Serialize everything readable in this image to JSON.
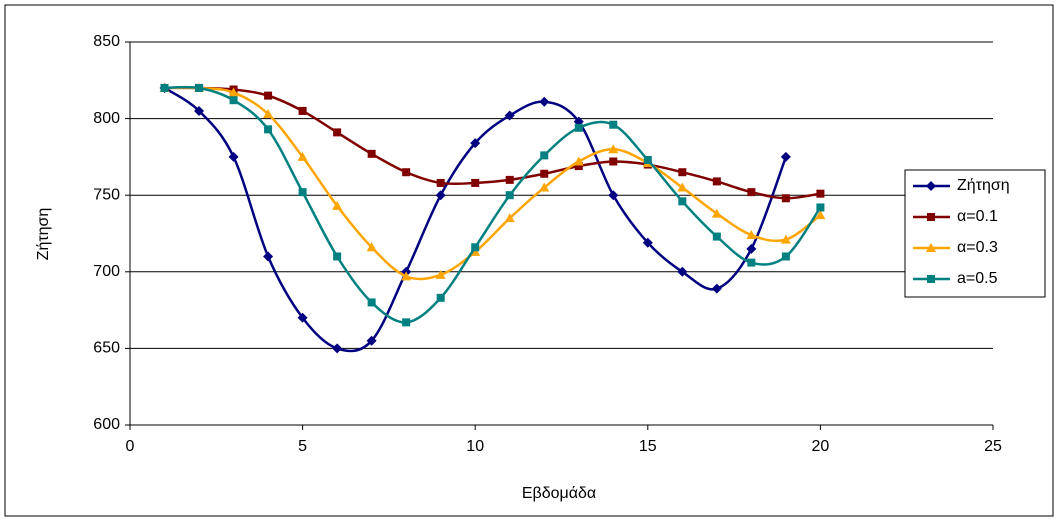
{
  "chart_data": {
    "type": "line",
    "xlabel": "Εβδομάδα",
    "ylabel": "Ζήτηση",
    "x": [
      1,
      2,
      3,
      4,
      5,
      6,
      7,
      8,
      9,
      10,
      11,
      12,
      13,
      14,
      15,
      16,
      17,
      18,
      19,
      20
    ],
    "series": [
      {
        "name": "Ζήτηση",
        "color": "#000080",
        "marker": "diamond",
        "values": [
          820,
          805,
          775,
          710,
          670,
          650,
          655,
          700,
          750,
          784,
          802,
          811,
          798,
          750,
          719,
          700,
          689,
          715,
          775,
          null
        ]
      },
      {
        "name": "α=0.1",
        "color": "#800000",
        "marker": "square",
        "values": [
          820,
          820,
          819,
          815,
          805,
          791,
          777,
          765,
          758,
          758,
          760,
          764,
          769,
          772,
          770,
          765,
          759,
          752,
          748,
          751
        ]
      },
      {
        "name": "α=0.3",
        "color": "#FFA500",
        "marker": "triangle",
        "values": [
          820,
          820,
          817,
          803,
          775,
          743,
          716,
          697,
          698,
          713,
          735,
          755,
          772,
          780,
          771,
          755,
          738,
          724,
          721,
          737
        ]
      },
      {
        "name": "a=0.5",
        "color": "#008080",
        "marker": "square",
        "values": [
          820,
          820,
          812,
          793,
          752,
          710,
          680,
          667,
          683,
          716,
          750,
          776,
          794,
          796,
          773,
          746,
          723,
          706,
          710,
          742
        ]
      }
    ],
    "xlim": [
      0,
      25
    ],
    "xticks": [
      0,
      5,
      10,
      15,
      20,
      25
    ],
    "ylim": [
      600,
      850
    ],
    "yticks": [
      600,
      650,
      700,
      750,
      800,
      850
    ],
    "grid": true,
    "smooth": true,
    "legend": "right"
  }
}
